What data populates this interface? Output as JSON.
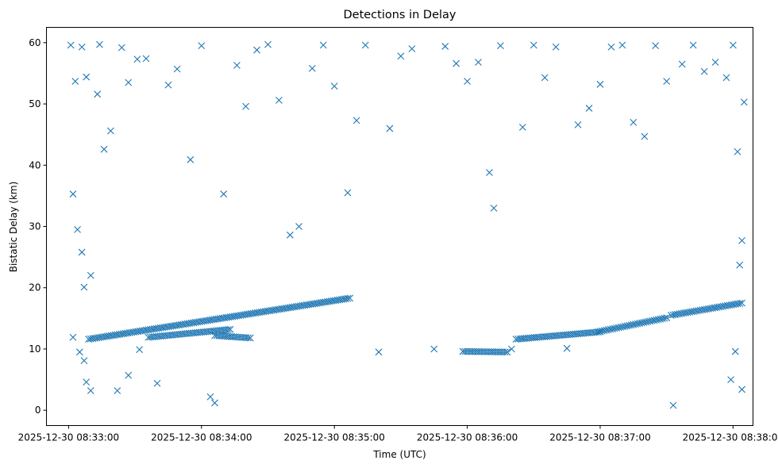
{
  "chart_data": {
    "type": "scatter",
    "title": "Detections in Delay",
    "xlabel": "Time (UTC)",
    "ylabel": "Bistatic Delay (km)",
    "x_unit": "UTC datetime",
    "xlim": [
      "2025-12-30 08:32:50",
      "2025-12-30 08:38:09"
    ],
    "ylim": [
      -2.5,
      62.5
    ],
    "x_ticks": [
      "2025-12-30 08:33:00",
      "2025-12-30 08:34:00",
      "2025-12-30 08:35:00",
      "2025-12-30 08:36:00",
      "2025-12-30 08:37:00",
      "2025-12-30 08:38:00"
    ],
    "y_ticks": [
      0,
      10,
      20,
      30,
      40,
      50,
      60
    ],
    "grid": false,
    "marker": "x",
    "color": "#1f77b4",
    "series": [
      {
        "label_note": "dense tracks and clutter (values estimated from plot)",
        "tracks": [
          {
            "x_start": "2025-12-30 08:33:09",
            "x_end": "2025-12-30 08:35:07",
            "y_start": 11.6,
            "y_end": 18.3
          },
          {
            "x_start": "2025-12-30 08:33:36",
            "x_end": "2025-12-30 08:34:13",
            "y_start": 11.9,
            "y_end": 13.2
          },
          {
            "x_start": "2025-12-30 08:34:06",
            "x_end": "2025-12-30 08:34:22",
            "y_start": 12.2,
            "y_end": 11.8
          },
          {
            "x_start": "2025-12-30 08:35:58",
            "x_end": "2025-12-30 08:36:18",
            "y_start": 9.6,
            "y_end": 9.5
          },
          {
            "x_start": "2025-12-30 08:36:22",
            "x_end": "2025-12-30 08:37:00",
            "y_start": 11.6,
            "y_end": 12.8
          },
          {
            "x_start": "2025-12-30 08:36:59",
            "x_end": "2025-12-30 08:37:30",
            "y_start": 12.8,
            "y_end": 15.1
          },
          {
            "x_start": "2025-12-30 08:37:32",
            "x_end": "2025-12-30 08:38:04",
            "y_start": 15.5,
            "y_end": 17.5
          }
        ],
        "points": [
          [
            "2025-12-30 08:33:01",
            59.6
          ],
          [
            "2025-12-30 08:33:03",
            53.7
          ],
          [
            "2025-12-30 08:33:06",
            59.3
          ],
          [
            "2025-12-30 08:33:08",
            54.4
          ],
          [
            "2025-12-30 08:33:13",
            51.6
          ],
          [
            "2025-12-30 08:33:14",
            59.7
          ],
          [
            "2025-12-30 08:33:02",
            35.3
          ],
          [
            "2025-12-30 08:33:04",
            29.5
          ],
          [
            "2025-12-30 08:33:06",
            25.8
          ],
          [
            "2025-12-30 08:33:07",
            20.1
          ],
          [
            "2025-12-30 08:33:10",
            22.0
          ],
          [
            "2025-12-30 08:33:02",
            11.9
          ],
          [
            "2025-12-30 08:33:05",
            9.5
          ],
          [
            "2025-12-30 08:33:07",
            8.1
          ],
          [
            "2025-12-30 08:33:08",
            4.6
          ],
          [
            "2025-12-30 08:33:10",
            3.2
          ],
          [
            "2025-12-30 08:33:16",
            42.6
          ],
          [
            "2025-12-30 08:33:19",
            45.6
          ],
          [
            "2025-12-30 08:33:24",
            59.2
          ],
          [
            "2025-12-30 08:33:27",
            53.5
          ],
          [
            "2025-12-30 08:33:31",
            57.3
          ],
          [
            "2025-12-30 08:33:35",
            57.4
          ],
          [
            "2025-12-30 08:33:22",
            3.2
          ],
          [
            "2025-12-30 08:33:27",
            5.7
          ],
          [
            "2025-12-30 08:33:32",
            9.9
          ],
          [
            "2025-12-30 08:33:40",
            4.4
          ],
          [
            "2025-12-30 08:33:45",
            53.1
          ],
          [
            "2025-12-30 08:33:49",
            55.7
          ],
          [
            "2025-12-30 08:33:55",
            40.9
          ],
          [
            "2025-12-30 08:34:00",
            59.5
          ],
          [
            "2025-12-30 08:34:04",
            2.2
          ],
          [
            "2025-12-30 08:34:06",
            1.2
          ],
          [
            "2025-12-30 08:34:10",
            35.3
          ],
          [
            "2025-12-30 08:34:16",
            56.3
          ],
          [
            "2025-12-30 08:34:20",
            49.6
          ],
          [
            "2025-12-30 08:34:25",
            58.8
          ],
          [
            "2025-12-30 08:34:30",
            59.7
          ],
          [
            "2025-12-30 08:34:35",
            50.6
          ],
          [
            "2025-12-30 08:34:40",
            28.6
          ],
          [
            "2025-12-30 08:34:44",
            30.0
          ],
          [
            "2025-12-30 08:34:50",
            55.8
          ],
          [
            "2025-12-30 08:34:55",
            59.6
          ],
          [
            "2025-12-30 08:35:00",
            52.9
          ],
          [
            "2025-12-30 08:35:06",
            35.5
          ],
          [
            "2025-12-30 08:35:10",
            47.3
          ],
          [
            "2025-12-30 08:35:14",
            59.6
          ],
          [
            "2025-12-30 08:35:20",
            9.5
          ],
          [
            "2025-12-30 08:35:25",
            46.0
          ],
          [
            "2025-12-30 08:35:30",
            57.8
          ],
          [
            "2025-12-30 08:35:35",
            59.0
          ],
          [
            "2025-12-30 08:35:45",
            10.0
          ],
          [
            "2025-12-30 08:35:50",
            59.4
          ],
          [
            "2025-12-30 08:35:55",
            56.6
          ],
          [
            "2025-12-30 08:36:00",
            53.7
          ],
          [
            "2025-12-30 08:36:05",
            56.8
          ],
          [
            "2025-12-30 08:36:10",
            38.8
          ],
          [
            "2025-12-30 08:36:12",
            33.0
          ],
          [
            "2025-12-30 08:36:15",
            59.5
          ],
          [
            "2025-12-30 08:36:20",
            10.0
          ],
          [
            "2025-12-30 08:36:25",
            46.2
          ],
          [
            "2025-12-30 08:36:30",
            59.6
          ],
          [
            "2025-12-30 08:36:35",
            54.3
          ],
          [
            "2025-12-30 08:36:40",
            59.3
          ],
          [
            "2025-12-30 08:36:45",
            10.1
          ],
          [
            "2025-12-30 08:36:50",
            46.6
          ],
          [
            "2025-12-30 08:36:55",
            49.3
          ],
          [
            "2025-12-30 08:37:00",
            53.2
          ],
          [
            "2025-12-30 08:37:05",
            59.3
          ],
          [
            "2025-12-30 08:37:10",
            59.6
          ],
          [
            "2025-12-30 08:37:15",
            47.0
          ],
          [
            "2025-12-30 08:37:20",
            44.7
          ],
          [
            "2025-12-30 08:37:25",
            59.5
          ],
          [
            "2025-12-30 08:37:30",
            53.7
          ],
          [
            "2025-12-30 08:37:33",
            0.8
          ],
          [
            "2025-12-30 08:37:37",
            56.5
          ],
          [
            "2025-12-30 08:37:42",
            59.6
          ],
          [
            "2025-12-30 08:37:47",
            55.3
          ],
          [
            "2025-12-30 08:37:52",
            56.8
          ],
          [
            "2025-12-30 08:37:57",
            54.3
          ],
          [
            "2025-12-30 08:38:00",
            59.6
          ],
          [
            "2025-12-30 08:38:02",
            42.2
          ],
          [
            "2025-12-30 08:38:04",
            27.7
          ],
          [
            "2025-12-30 08:38:03",
            23.7
          ],
          [
            "2025-12-30 08:38:05",
            50.3
          ],
          [
            "2025-12-30 08:38:04",
            3.4
          ],
          [
            "2025-12-30 08:38:01",
            9.6
          ],
          [
            "2025-12-30 08:37:59",
            5.0
          ]
        ]
      }
    ]
  }
}
